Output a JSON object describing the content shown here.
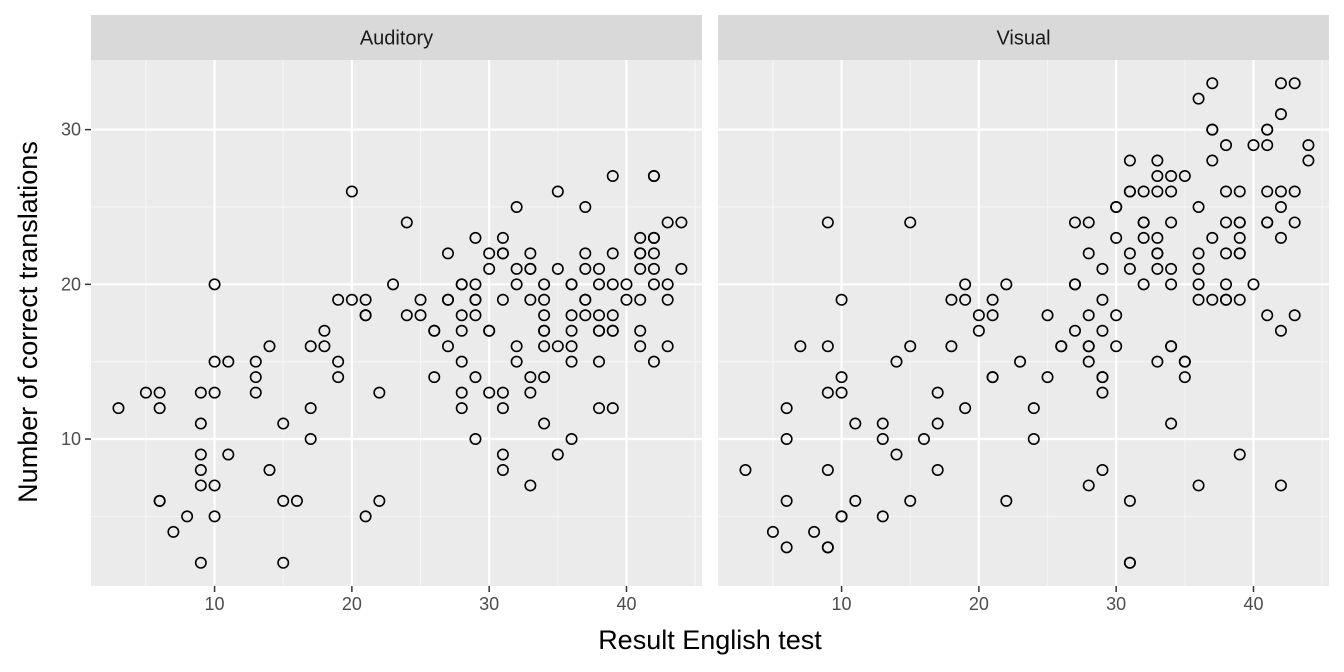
{
  "chart_data": {
    "type": "scatter",
    "xlabel": "Result English test",
    "ylabel": "Number of correct translations",
    "xlim": [
      1,
      45.5
    ],
    "ylim": [
      0.5,
      34.5
    ],
    "x_ticks": [
      10,
      20,
      30,
      40
    ],
    "y_ticks": [
      10,
      20,
      30
    ],
    "grid": true,
    "legend": "none",
    "colors": {
      "panel_background": "#ebebeb",
      "strip_background": "#d9d9d9",
      "grid_major": "#ffffff",
      "grid_minor": "#f5f5f5",
      "point_stroke": "#000000",
      "tick_color": "#333333"
    },
    "panels": [
      {
        "label": "Auditory",
        "points": [
          [
            3,
            12
          ],
          [
            5,
            13
          ],
          [
            6,
            13
          ],
          [
            6,
            12
          ],
          [
            6,
            6
          ],
          [
            6,
            6
          ],
          [
            7,
            4
          ],
          [
            8,
            5
          ],
          [
            9,
            2
          ],
          [
            9,
            7
          ],
          [
            9,
            8
          ],
          [
            9,
            9
          ],
          [
            9,
            11
          ],
          [
            9,
            13
          ],
          [
            10,
            5
          ],
          [
            10,
            7
          ],
          [
            10,
            13
          ],
          [
            10,
            15
          ],
          [
            10,
            20
          ],
          [
            11,
            9
          ],
          [
            11,
            15
          ],
          [
            13,
            13
          ],
          [
            13,
            14
          ],
          [
            13,
            15
          ],
          [
            14,
            8
          ],
          [
            14,
            16
          ],
          [
            15,
            2
          ],
          [
            15,
            6
          ],
          [
            15,
            11
          ],
          [
            16,
            6
          ],
          [
            17,
            10
          ],
          [
            17,
            12
          ],
          [
            17,
            16
          ],
          [
            18,
            16
          ],
          [
            18,
            17
          ],
          [
            19,
            14
          ],
          [
            19,
            15
          ],
          [
            19,
            19
          ],
          [
            20,
            19
          ],
          [
            20,
            26
          ],
          [
            21,
            5
          ],
          [
            21,
            18
          ],
          [
            21,
            18
          ],
          [
            21,
            19
          ],
          [
            22,
            6
          ],
          [
            22,
            13
          ],
          [
            23,
            20
          ],
          [
            24,
            18
          ],
          [
            24,
            24
          ],
          [
            25,
            18
          ],
          [
            25,
            19
          ],
          [
            26,
            14
          ],
          [
            26,
            17
          ],
          [
            26,
            17
          ],
          [
            27,
            16
          ],
          [
            27,
            19
          ],
          [
            27,
            19
          ],
          [
            27,
            22
          ],
          [
            28,
            12
          ],
          [
            28,
            13
          ],
          [
            28,
            15
          ],
          [
            28,
            17
          ],
          [
            28,
            18
          ],
          [
            28,
            20
          ],
          [
            28,
            20
          ],
          [
            29,
            10
          ],
          [
            29,
            14
          ],
          [
            29,
            18
          ],
          [
            29,
            19
          ],
          [
            29,
            19
          ],
          [
            29,
            20
          ],
          [
            29,
            23
          ],
          [
            30,
            13
          ],
          [
            30,
            17
          ],
          [
            30,
            17
          ],
          [
            30,
            21
          ],
          [
            30,
            22
          ],
          [
            31,
            8
          ],
          [
            31,
            9
          ],
          [
            31,
            12
          ],
          [
            31,
            13
          ],
          [
            31,
            19
          ],
          [
            31,
            22
          ],
          [
            31,
            22
          ],
          [
            31,
            23
          ],
          [
            32,
            15
          ],
          [
            32,
            16
          ],
          [
            32,
            20
          ],
          [
            32,
            21
          ],
          [
            32,
            25
          ],
          [
            33,
            7
          ],
          [
            33,
            13
          ],
          [
            33,
            14
          ],
          [
            33,
            19
          ],
          [
            33,
            21
          ],
          [
            33,
            21
          ],
          [
            33,
            22
          ],
          [
            34,
            11
          ],
          [
            34,
            14
          ],
          [
            34,
            16
          ],
          [
            34,
            17
          ],
          [
            34,
            17
          ],
          [
            34,
            18
          ],
          [
            34,
            19
          ],
          [
            34,
            20
          ],
          [
            35,
            9
          ],
          [
            35,
            16
          ],
          [
            35,
            21
          ],
          [
            35,
            26
          ],
          [
            36,
            10
          ],
          [
            36,
            15
          ],
          [
            36,
            16
          ],
          [
            36,
            17
          ],
          [
            36,
            18
          ],
          [
            36,
            20
          ],
          [
            36,
            20
          ],
          [
            37,
            18
          ],
          [
            37,
            19
          ],
          [
            37,
            19
          ],
          [
            37,
            21
          ],
          [
            37,
            22
          ],
          [
            37,
            25
          ],
          [
            38,
            12
          ],
          [
            38,
            15
          ],
          [
            38,
            17
          ],
          [
            38,
            17
          ],
          [
            38,
            18
          ],
          [
            38,
            20
          ],
          [
            38,
            21
          ],
          [
            39,
            12
          ],
          [
            39,
            17
          ],
          [
            39,
            17
          ],
          [
            39,
            18
          ],
          [
            39,
            20
          ],
          [
            39,
            22
          ],
          [
            39,
            27
          ],
          [
            40,
            19
          ],
          [
            40,
            20
          ],
          [
            41,
            16
          ],
          [
            41,
            17
          ],
          [
            41,
            19
          ],
          [
            41,
            21
          ],
          [
            41,
            22
          ],
          [
            41,
            22
          ],
          [
            41,
            23
          ],
          [
            42,
            15
          ],
          [
            42,
            20
          ],
          [
            42,
            21
          ],
          [
            42,
            22
          ],
          [
            42,
            23
          ],
          [
            42,
            23
          ],
          [
            42,
            27
          ],
          [
            42,
            27
          ],
          [
            43,
            16
          ],
          [
            43,
            19
          ],
          [
            43,
            20
          ],
          [
            43,
            24
          ],
          [
            44,
            21
          ],
          [
            44,
            24
          ]
        ]
      },
      {
        "label": "Visual",
        "points": [
          [
            3,
            8
          ],
          [
            5,
            4
          ],
          [
            6,
            3
          ],
          [
            6,
            6
          ],
          [
            6,
            10
          ],
          [
            6,
            12
          ],
          [
            7,
            16
          ],
          [
            8,
            4
          ],
          [
            9,
            3
          ],
          [
            9,
            3
          ],
          [
            9,
            8
          ],
          [
            9,
            13
          ],
          [
            9,
            16
          ],
          [
            9,
            24
          ],
          [
            10,
            5
          ],
          [
            10,
            5
          ],
          [
            10,
            13
          ],
          [
            10,
            14
          ],
          [
            10,
            19
          ],
          [
            11,
            6
          ],
          [
            11,
            11
          ],
          [
            13,
            5
          ],
          [
            13,
            10
          ],
          [
            13,
            11
          ],
          [
            14,
            9
          ],
          [
            14,
            15
          ],
          [
            15,
            6
          ],
          [
            15,
            16
          ],
          [
            15,
            24
          ],
          [
            16,
            10
          ],
          [
            17,
            8
          ],
          [
            17,
            11
          ],
          [
            17,
            13
          ],
          [
            18,
            16
          ],
          [
            18,
            19
          ],
          [
            19,
            12
          ],
          [
            19,
            19
          ],
          [
            19,
            20
          ],
          [
            20,
            17
          ],
          [
            20,
            18
          ],
          [
            21,
            14
          ],
          [
            21,
            14
          ],
          [
            21,
            18
          ],
          [
            21,
            19
          ],
          [
            22,
            6
          ],
          [
            22,
            20
          ],
          [
            23,
            15
          ],
          [
            24,
            10
          ],
          [
            24,
            12
          ],
          [
            25,
            14
          ],
          [
            25,
            18
          ],
          [
            26,
            16
          ],
          [
            26,
            16
          ],
          [
            27,
            17
          ],
          [
            27,
            20
          ],
          [
            27,
            20
          ],
          [
            27,
            24
          ],
          [
            28,
            7
          ],
          [
            28,
            15
          ],
          [
            28,
            16
          ],
          [
            28,
            16
          ],
          [
            28,
            18
          ],
          [
            28,
            22
          ],
          [
            28,
            24
          ],
          [
            29,
            8
          ],
          [
            29,
            13
          ],
          [
            29,
            14
          ],
          [
            29,
            14
          ],
          [
            29,
            17
          ],
          [
            29,
            19
          ],
          [
            29,
            21
          ],
          [
            30,
            16
          ],
          [
            30,
            18
          ],
          [
            30,
            23
          ],
          [
            30,
            25
          ],
          [
            30,
            25
          ],
          [
            31,
            2
          ],
          [
            31,
            2
          ],
          [
            31,
            6
          ],
          [
            31,
            21
          ],
          [
            31,
            22
          ],
          [
            31,
            26
          ],
          [
            31,
            26
          ],
          [
            31,
            28
          ],
          [
            32,
            20
          ],
          [
            32,
            23
          ],
          [
            32,
            24
          ],
          [
            32,
            24
          ],
          [
            32,
            26
          ],
          [
            33,
            15
          ],
          [
            33,
            21
          ],
          [
            33,
            22
          ],
          [
            33,
            22
          ],
          [
            33,
            23
          ],
          [
            33,
            26
          ],
          [
            33,
            27
          ],
          [
            33,
            28
          ],
          [
            34,
            11
          ],
          [
            34,
            16
          ],
          [
            34,
            16
          ],
          [
            34,
            20
          ],
          [
            34,
            21
          ],
          [
            34,
            24
          ],
          [
            34,
            26
          ],
          [
            34,
            27
          ],
          [
            35,
            14
          ],
          [
            35,
            15
          ],
          [
            35,
            15
          ],
          [
            35,
            27
          ],
          [
            36,
            7
          ],
          [
            36,
            19
          ],
          [
            36,
            20
          ],
          [
            36,
            21
          ],
          [
            36,
            22
          ],
          [
            36,
            25
          ],
          [
            36,
            32
          ],
          [
            37,
            19
          ],
          [
            37,
            23
          ],
          [
            37,
            28
          ],
          [
            37,
            30
          ],
          [
            37,
            30
          ],
          [
            37,
            33
          ],
          [
            38,
            19
          ],
          [
            38,
            19
          ],
          [
            38,
            20
          ],
          [
            38,
            22
          ],
          [
            38,
            24
          ],
          [
            38,
            26
          ],
          [
            38,
            29
          ],
          [
            39,
            9
          ],
          [
            39,
            19
          ],
          [
            39,
            22
          ],
          [
            39,
            22
          ],
          [
            39,
            23
          ],
          [
            39,
            24
          ],
          [
            39,
            24
          ],
          [
            39,
            26
          ],
          [
            40,
            20
          ],
          [
            40,
            29
          ],
          [
            41,
            18
          ],
          [
            41,
            24
          ],
          [
            41,
            24
          ],
          [
            41,
            26
          ],
          [
            41,
            29
          ],
          [
            41,
            30
          ],
          [
            41,
            30
          ],
          [
            42,
            7
          ],
          [
            42,
            17
          ],
          [
            42,
            23
          ],
          [
            42,
            25
          ],
          [
            42,
            26
          ],
          [
            42,
            31
          ],
          [
            42,
            33
          ],
          [
            43,
            18
          ],
          [
            43,
            24
          ],
          [
            43,
            26
          ],
          [
            43,
            33
          ],
          [
            44,
            28
          ],
          [
            44,
            29
          ]
        ]
      }
    ]
  }
}
